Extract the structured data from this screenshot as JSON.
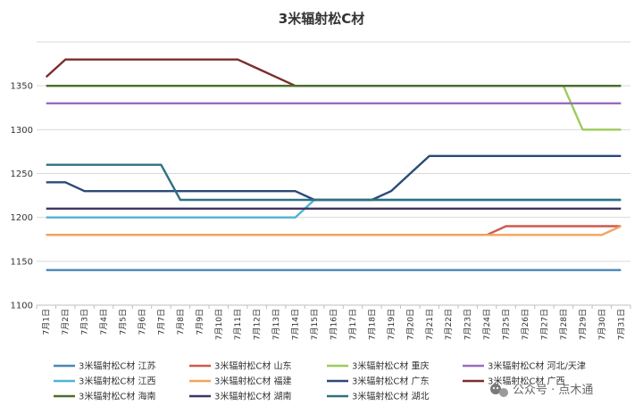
{
  "chart_data": {
    "type": "line",
    "title": "3米辐射松C材",
    "xlabel": "",
    "ylabel": "",
    "ylim": [
      1100,
      1400
    ],
    "yticks": [
      1100,
      1150,
      1200,
      1250,
      1300,
      1350
    ],
    "grid": true,
    "legend_position": "bottom",
    "categories": [
      "7月1日",
      "7月2日",
      "7月3日",
      "7月4日",
      "7月5日",
      "7月6日",
      "7月7日",
      "7月8日",
      "7月9日",
      "7月10日",
      "7月11日",
      "7月12日",
      "7月13日",
      "7月14日",
      "7月15日",
      "7月16日",
      "7月17日",
      "7月18日",
      "7月19日",
      "7月20日",
      "7月21日",
      "7月22日",
      "7月23日",
      "7月24日",
      "7月25日",
      "7月26日",
      "7月27日",
      "7月28日",
      "7月29日",
      "7月30日",
      "7月31日"
    ],
    "series": [
      {
        "name": "3米辐射松C材 江苏",
        "color": "#4a86b8",
        "values": [
          1140,
          1140,
          1140,
          1140,
          1140,
          1140,
          1140,
          1140,
          1140,
          1140,
          1140,
          1140,
          1140,
          1140,
          1140,
          1140,
          1140,
          1140,
          1140,
          1140,
          1140,
          1140,
          1140,
          1140,
          1140,
          1140,
          1140,
          1140,
          1140,
          1140,
          1140
        ]
      },
      {
        "name": "3米辐射松C材 山东",
        "color": "#d0584d",
        "values": [
          1180,
          1180,
          1180,
          1180,
          1180,
          1180,
          1180,
          1180,
          1180,
          1180,
          1180,
          1180,
          1180,
          1180,
          1180,
          1180,
          1180,
          1180,
          1180,
          1180,
          1180,
          1180,
          1180,
          1180,
          1190,
          1190,
          1190,
          1190,
          1190,
          1190,
          1190
        ]
      },
      {
        "name": "3米辐射松C材 重庆",
        "color": "#9ccc5a",
        "values": [
          1350,
          1350,
          1350,
          1350,
          1350,
          1350,
          1350,
          1350,
          1350,
          1350,
          1350,
          1350,
          1350,
          1350,
          1350,
          1350,
          1350,
          1350,
          1350,
          1350,
          1350,
          1350,
          1350,
          1350,
          1350,
          1350,
          1350,
          1350,
          1300,
          1300,
          1300
        ]
      },
      {
        "name": "3米辐射松C材 河北/天津",
        "color": "#9b6bbf",
        "values": [
          1330,
          1330,
          1330,
          1330,
          1330,
          1330,
          1330,
          1330,
          1330,
          1330,
          1330,
          1330,
          1330,
          1330,
          1330,
          1330,
          1330,
          1330,
          1330,
          1330,
          1330,
          1330,
          1330,
          1330,
          1330,
          1330,
          1330,
          1330,
          1330,
          1330,
          1330
        ]
      },
      {
        "name": "3米辐射松C材 江西",
        "color": "#4fb3d4",
        "values": [
          1200,
          1200,
          1200,
          1200,
          1200,
          1200,
          1200,
          1200,
          1200,
          1200,
          1200,
          1200,
          1200,
          1200,
          1220,
          1220,
          1220,
          1220,
          1220,
          1220,
          1220,
          1220,
          1220,
          1220,
          1220,
          1220,
          1220,
          1220,
          1220,
          1220,
          1220
        ]
      },
      {
        "name": "3米辐射松C材 福建",
        "color": "#f2a55a",
        "values": [
          1180,
          1180,
          1180,
          1180,
          1180,
          1180,
          1180,
          1180,
          1180,
          1180,
          1180,
          1180,
          1180,
          1180,
          1180,
          1180,
          1180,
          1180,
          1180,
          1180,
          1180,
          1180,
          1180,
          1180,
          1180,
          1180,
          1180,
          1180,
          1180,
          1180,
          1190
        ]
      },
      {
        "name": "3米辐射松C材 广东",
        "color": "#2b4a78",
        "values": [
          1240,
          1240,
          1230,
          1230,
          1230,
          1230,
          1230,
          1230,
          1230,
          1230,
          1230,
          1230,
          1230,
          1230,
          1220,
          1220,
          1220,
          1220,
          1230,
          1250,
          1270,
          1270,
          1270,
          1270,
          1270,
          1270,
          1270,
          1270,
          1270,
          1270,
          1270
        ]
      },
      {
        "name": "3米辐射松C材 广西",
        "color": "#7b2d2d",
        "values": [
          1360,
          1380,
          1380,
          1380,
          1380,
          1380,
          1380,
          1380,
          1380,
          1380,
          1380,
          1370,
          1360,
          1350,
          1350,
          1350,
          1350,
          1350,
          1350,
          1350,
          1350,
          1350,
          1350,
          1350,
          1350,
          1350,
          1350,
          1350,
          1350,
          1350,
          1350
        ]
      },
      {
        "name": "3米辐射松C材 海南",
        "color": "#4b6f2c",
        "values": [
          1350,
          1350,
          1350,
          1350,
          1350,
          1350,
          1350,
          1350,
          1350,
          1350,
          1350,
          1350,
          1350,
          1350,
          1350,
          1350,
          1350,
          1350,
          1350,
          1350,
          1350,
          1350,
          1350,
          1350,
          1350,
          1350,
          1350,
          1350,
          1350,
          1350,
          1350
        ]
      },
      {
        "name": "3米辐射松C材 湖南",
        "color": "#3e3660",
        "values": [
          1210,
          1210,
          1210,
          1210,
          1210,
          1210,
          1210,
          1210,
          1210,
          1210,
          1210,
          1210,
          1210,
          1210,
          1210,
          1210,
          1210,
          1210,
          1210,
          1210,
          1210,
          1210,
          1210,
          1210,
          1210,
          1210,
          1210,
          1210,
          1210,
          1210,
          1210
        ]
      },
      {
        "name": "3米辐射松C材 湖北",
        "color": "#2e7184",
        "values": [
          1260,
          1260,
          1260,
          1260,
          1260,
          1260,
          1260,
          1220,
          1220,
          1220,
          1220,
          1220,
          1220,
          1220,
          1220,
          1220,
          1220,
          1220,
          1220,
          1220,
          1220,
          1220,
          1220,
          1220,
          1220,
          1220,
          1220,
          1220,
          1220,
          1220,
          1220
        ]
      }
    ]
  },
  "watermark": {
    "text": "公众号 · 点木通",
    "icon": "wechat-icon"
  }
}
